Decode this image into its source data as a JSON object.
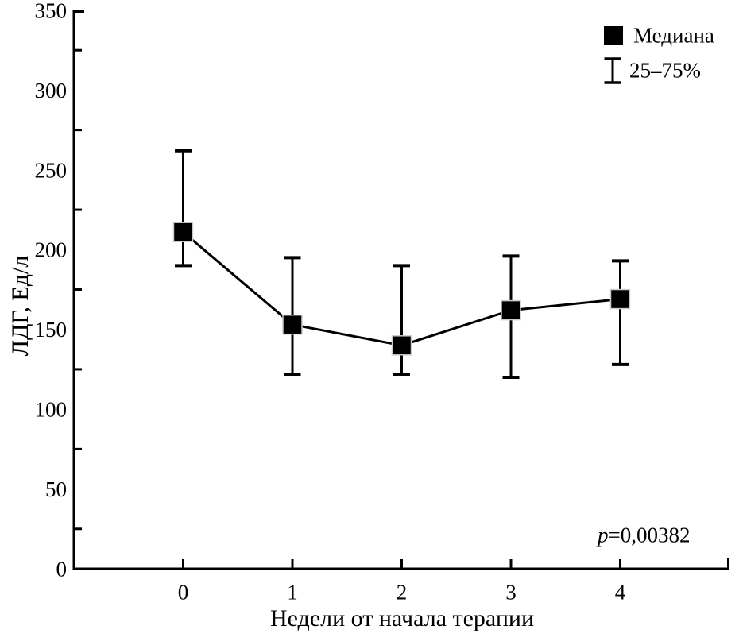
{
  "figure": {
    "background_color": "#ffffff",
    "ink_color": "#000000"
  },
  "chart_data": {
    "type": "line",
    "title": "",
    "xlabel": "Недели от начала терапии",
    "ylabel": "ЛДГ, Ед/л",
    "x": [
      0,
      1,
      2,
      3,
      4
    ],
    "x_tick_labels": [
      "0",
      "1",
      "2",
      "3",
      "4"
    ],
    "xlim": [
      -1,
      5
    ],
    "ylim": [
      0,
      350
    ],
    "y_major_step": 50,
    "y_minor_step": 25,
    "y_tick_labels": [
      "0",
      "50",
      "100",
      "150",
      "200",
      "250",
      "300",
      "350"
    ],
    "grid": false,
    "series": [
      {
        "name": "Медиана",
        "marker": "filled-square",
        "marker_color": "#000000",
        "line_color": "#000000",
        "values": [
          211,
          153,
          140,
          162,
          169
        ],
        "error_q25": [
          190,
          122,
          122,
          120,
          128
        ],
        "error_q75": [
          262,
          195,
          190,
          196,
          193
        ],
        "error_label": "25–75%"
      }
    ],
    "legend": {
      "position": "top-right-inside",
      "entries": [
        {
          "symbol": "filled-square",
          "label": "Медиана"
        },
        {
          "symbol": "error-bar",
          "label": "25–75%"
        }
      ]
    },
    "annotations": [
      {
        "text_italic": "p",
        "text": "=0,00382",
        "position": "bottom-right"
      }
    ]
  }
}
